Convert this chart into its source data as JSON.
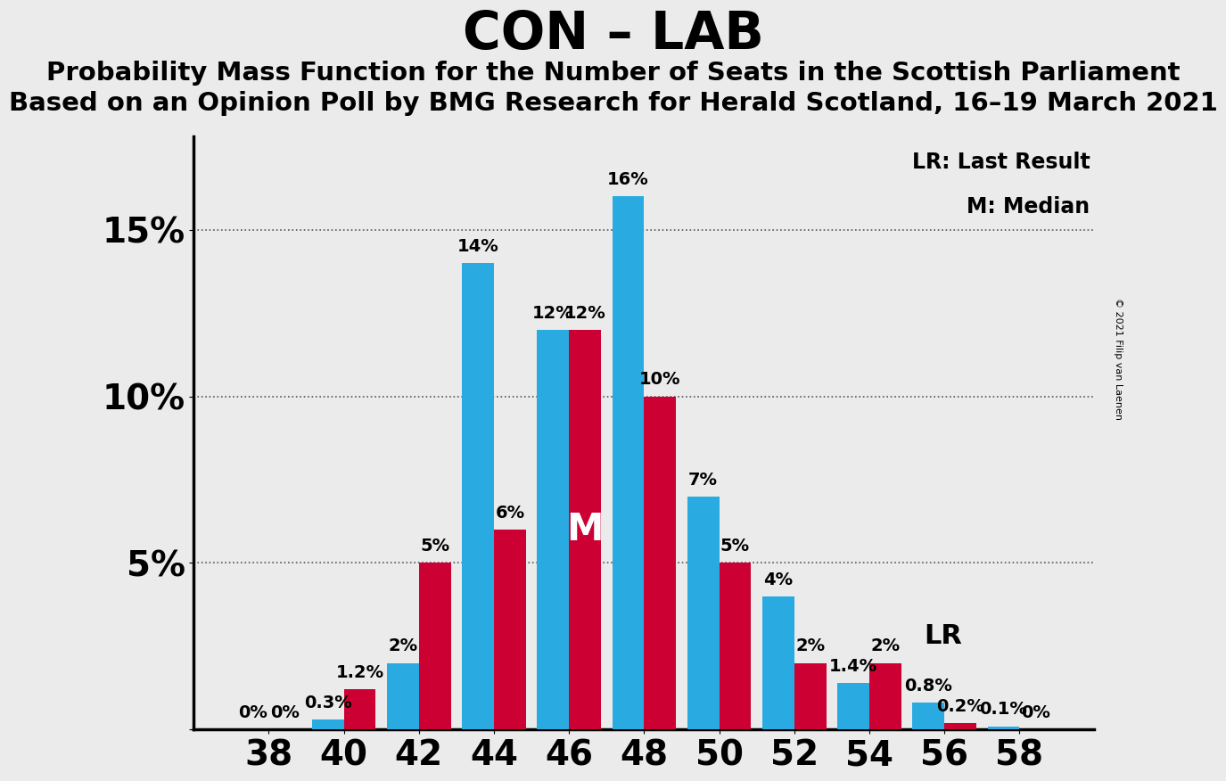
{
  "title": "CON – LAB",
  "subtitle1": "Probability Mass Function for the Number of Seats in the Scottish Parliament",
  "subtitle2": "Based on an Opinion Poll by BMG Research for Herald Scotland, 16–19 March 2021",
  "copyright": "© 2021 Filip van Laenen",
  "seats": [
    38,
    40,
    42,
    44,
    46,
    48,
    50,
    52,
    54,
    56,
    58
  ],
  "blue_values": [
    0.0,
    0.3,
    2.0,
    14.0,
    12.0,
    16.0,
    7.0,
    4.0,
    1.4,
    0.8,
    0.1
  ],
  "red_values": [
    0.0,
    1.2,
    5.0,
    6.0,
    12.0,
    10.0,
    5.0,
    2.0,
    2.0,
    0.2,
    0.0
  ],
  "blue_color": "#29ABE2",
  "red_color": "#CC0033",
  "bg_color": "#EBEBEB",
  "yticks": [
    0,
    5,
    10,
    15
  ],
  "ylim": [
    0,
    17.8
  ],
  "xlabel_fontsize": 28,
  "ylabel_fontsize": 28,
  "title_fontsize": 42,
  "subtitle_fontsize": 21,
  "bar_label_fontsize": 14,
  "median_seat_idx": 4,
  "lr_seat_idx": 8,
  "blue_labels": [
    "0%",
    "0.3%",
    "2%",
    "14%",
    "12%",
    "16%",
    "7%",
    "4%",
    "1.4%",
    "0.8%",
    "0.1%"
  ],
  "red_labels": [
    "0%",
    "1.2%",
    "5%",
    "6%",
    "12%",
    "10%",
    "5%",
    "2%",
    "2%",
    "0.2%",
    "0%"
  ],
  "xtick_seats": [
    38,
    40,
    42,
    44,
    46,
    48,
    50,
    52,
    54,
    56,
    58
  ]
}
